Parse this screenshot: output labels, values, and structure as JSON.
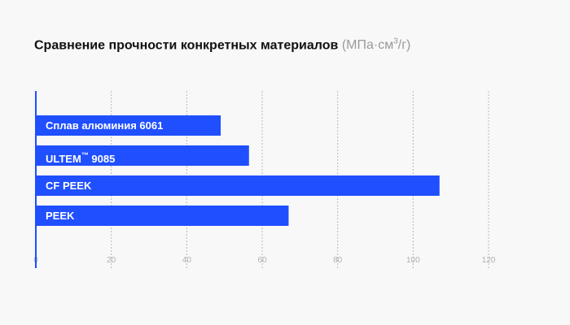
{
  "chart_data": {
    "type": "bar",
    "orientation": "horizontal",
    "title": "Сравнение прочности конкретных материалов",
    "title_unit_prefix": "(МПа·см",
    "title_unit_sup": "3",
    "title_unit_suffix": "/г)",
    "categories": [
      {
        "label": "Сплав алюминия 6061",
        "sup": "",
        "after": ""
      },
      {
        "label": "ULTEM",
        "sup": "™",
        "after": "9085"
      },
      {
        "label": "CF PEEK",
        "sup": "",
        "after": ""
      },
      {
        "label": "PEEK",
        "sup": "",
        "after": ""
      }
    ],
    "values": [
      49,
      56.5,
      107,
      67
    ],
    "xlim": [
      0,
      120
    ],
    "xticks": [
      "0",
      "20",
      "40",
      "60",
      "80",
      "100",
      "120"
    ],
    "grid": "vertical-dashed",
    "colors": {
      "bar": "#1f4fff",
      "grid": "#b8b8b8",
      "tick_label": "#b0b0b0",
      "axis": "#1f4fff"
    }
  }
}
